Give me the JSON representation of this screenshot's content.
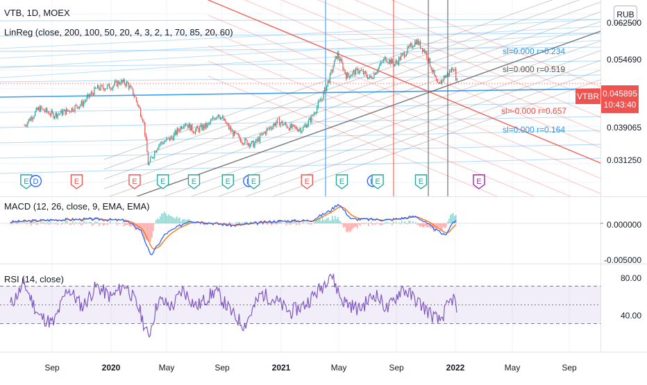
{
  "header": {
    "title": "VTB, 1D, MOEX",
    "linreg_label": "LinReg (close, 200, 100, 50, 20, 4, 3, 2, 1, 70, 85, 20, 60)"
  },
  "currency_button": "RUB",
  "ticker_tag": "VTBR",
  "current_price": "0.045895",
  "countdown": "10:43:40",
  "colors": {
    "up": "#26a69a",
    "down": "#ef5350",
    "macd": "#2962ff",
    "signal": "#ff6d00",
    "rsi": "#7e57c2",
    "blue_line": "#2196f3",
    "red_line": "#f44336",
    "grey_line": "#555555"
  },
  "chart_data": [
    {
      "type": "candlestick",
      "title": "VTB, 1D, MOEX",
      "price_axis_labels": [
        "0.062500",
        "0.054690",
        "0.045895",
        "0.039065",
        "0.031250"
      ],
      "x_tick_labels": [
        "Sep",
        "2020",
        "May",
        "Sep",
        "2021",
        "May",
        "Sep",
        "2022",
        "May",
        "Sep"
      ],
      "x_tick_bold": [
        false,
        true,
        false,
        false,
        true,
        false,
        false,
        true,
        false,
        false
      ],
      "ylim": [
        0.0275,
        0.0625
      ],
      "scale": "log",
      "close_path": [
        [
          "2019-07-01",
          0.0372
        ],
        [
          "2019-08-01",
          0.0405
        ],
        [
          "2019-09-01",
          0.0392
        ],
        [
          "2019-10-01",
          0.04
        ],
        [
          "2019-11-01",
          0.0415
        ],
        [
          "2019-12-01",
          0.0447
        ],
        [
          "2020-01-01",
          0.0452
        ],
        [
          "2020-01-20",
          0.0462
        ],
        [
          "2020-02-05",
          0.0458
        ],
        [
          "2020-02-20",
          0.043
        ],
        [
          "2020-03-10",
          0.038
        ],
        [
          "2020-03-20",
          0.0305
        ],
        [
          "2020-04-10",
          0.0338
        ],
        [
          "2020-05-10",
          0.035
        ],
        [
          "2020-06-05",
          0.0378
        ],
        [
          "2020-06-25",
          0.0362
        ],
        [
          "2020-07-25",
          0.0372
        ],
        [
          "2020-08-15",
          0.0395
        ],
        [
          "2020-09-15",
          0.0358
        ],
        [
          "2020-10-05",
          0.0345
        ],
        [
          "2020-10-30",
          0.0338
        ],
        [
          "2020-11-25",
          0.0362
        ],
        [
          "2020-12-20",
          0.038
        ],
        [
          "2021-01-15",
          0.0368
        ],
        [
          "2021-02-10",
          0.0365
        ],
        [
          "2021-03-01",
          0.0385
        ],
        [
          "2021-03-25",
          0.043
        ],
        [
          "2021-04-10",
          0.0475
        ],
        [
          "2021-04-25",
          0.0532
        ],
        [
          "2021-05-15",
          0.0475
        ],
        [
          "2021-06-10",
          0.049
        ],
        [
          "2021-07-05",
          0.047
        ],
        [
          "2021-08-05",
          0.052
        ],
        [
          "2021-08-25",
          0.0505
        ],
        [
          "2021-09-20",
          0.054
        ],
        [
          "2021-10-10",
          0.0568
        ],
        [
          "2021-10-30",
          0.0535
        ],
        [
          "2021-11-25",
          0.045
        ],
        [
          "2021-12-05",
          0.047
        ],
        [
          "2021-12-20",
          0.0485
        ],
        [
          "2021-12-28",
          0.05
        ],
        [
          "2022-01-05",
          0.0459
        ]
      ],
      "event_markers": [
        {
          "label": "E",
          "date": "2019-07-05",
          "kind": "earnings-green"
        },
        {
          "label": "D",
          "date": "2019-07-25",
          "kind": "dividend-blue"
        },
        {
          "label": "E",
          "date": "2019-10-20",
          "kind": "earnings-red"
        },
        {
          "label": "E",
          "date": "2020-02-20",
          "kind": "earnings-red"
        },
        {
          "label": "E",
          "date": "2020-04-20",
          "kind": "earnings-green"
        },
        {
          "label": "E",
          "date": "2020-06-25",
          "kind": "earnings-green"
        },
        {
          "label": "E",
          "date": "2020-09-05",
          "kind": "earnings-green"
        },
        {
          "label": "D",
          "date": "2020-10-20",
          "kind": "dividend-blue"
        },
        {
          "label": "E",
          "date": "2020-10-30",
          "kind": "earnings-green"
        },
        {
          "label": "E",
          "date": "2021-02-20",
          "kind": "earnings-red"
        },
        {
          "label": "E",
          "date": "2021-05-05",
          "kind": "earnings-green"
        },
        {
          "label": "D",
          "date": "2021-07-10",
          "kind": "dividend-blue"
        },
        {
          "label": "E",
          "date": "2021-07-20",
          "kind": "earnings-green"
        },
        {
          "label": "E",
          "date": "2021-10-20",
          "kind": "earnings-green"
        },
        {
          "label": "E",
          "date": "2022-02-20",
          "kind": "earnings-purple"
        }
      ],
      "regression_annotations": [
        {
          "text": "sl=0.000 r=0.234",
          "color": "#2196f3"
        },
        {
          "text": "sl=0.000 r=0.519",
          "color": "#555555"
        },
        {
          "text": "sl=-0.000 r=0.657",
          "color": "#f44336"
        },
        {
          "text": "sl=0.000 r=0.164",
          "color": "#2196f3"
        }
      ]
    },
    {
      "type": "line",
      "title": "MACD (12, 26, close, 9, EMA, EMA)",
      "axis_labels": [
        "0.000000",
        "-0.005000"
      ],
      "ylim": [
        -0.0058,
        0.0045
      ],
      "macd_path": [
        [
          "2019-06-01",
          0.0002
        ],
        [
          "2019-09-01",
          0.0005
        ],
        [
          "2019-12-01",
          0.0006
        ],
        [
          "2020-02-01",
          0.0004
        ],
        [
          "2020-03-05",
          -0.001
        ],
        [
          "2020-03-25",
          -0.0046
        ],
        [
          "2020-04-25",
          -0.0015
        ],
        [
          "2020-06-15",
          0.0004
        ],
        [
          "2020-09-15",
          -0.0003
        ],
        [
          "2020-12-15",
          0.0003
        ],
        [
          "2021-03-01",
          0.0004
        ],
        [
          "2021-04-10",
          0.0018
        ],
        [
          "2021-04-28",
          0.0028
        ],
        [
          "2021-05-25",
          0.0006
        ],
        [
          "2021-08-15",
          0.0005
        ],
        [
          "2021-10-10",
          0.001
        ],
        [
          "2021-11-25",
          -0.0011
        ],
        [
          "2021-12-10",
          -0.0017
        ],
        [
          "2021-12-28",
          0.0003
        ],
        [
          "2022-01-05",
          0.0002
        ]
      ]
    },
    {
      "type": "line",
      "title": "RSI (14, close)",
      "axis_labels": [
        "80.00",
        "40.00"
      ],
      "ylim": [
        10,
        90
      ],
      "bands": [
        70,
        50,
        30
      ],
      "rsi_path": [
        [
          "2019-06-01",
          50
        ],
        [
          "2019-07-01",
          72
        ],
        [
          "2019-08-01",
          38
        ],
        [
          "2019-09-01",
          30
        ],
        [
          "2019-10-01",
          68
        ],
        [
          "2019-11-01",
          48
        ],
        [
          "2019-12-01",
          70
        ],
        [
          "2020-01-01",
          58
        ],
        [
          "2020-02-01",
          72
        ],
        [
          "2020-03-01",
          45
        ],
        [
          "2020-03-20",
          15
        ],
        [
          "2020-04-10",
          55
        ],
        [
          "2020-05-10",
          48
        ],
        [
          "2020-06-01",
          66
        ],
        [
          "2020-07-01",
          48
        ],
        [
          "2020-08-10",
          65
        ],
        [
          "2020-09-15",
          40
        ],
        [
          "2020-10-10",
          28
        ],
        [
          "2020-11-15",
          62
        ],
        [
          "2020-12-15",
          55
        ],
        [
          "2021-01-15",
          42
        ],
        [
          "2021-02-15",
          50
        ],
        [
          "2021-03-25",
          70
        ],
        [
          "2021-04-10",
          85
        ],
        [
          "2021-05-05",
          55
        ],
        [
          "2021-06-10",
          45
        ],
        [
          "2021-07-15",
          62
        ],
        [
          "2021-08-10",
          45
        ],
        [
          "2021-09-10",
          68
        ],
        [
          "2021-10-10",
          55
        ],
        [
          "2021-11-10",
          40
        ],
        [
          "2021-11-28",
          32
        ],
        [
          "2021-12-15",
          48
        ],
        [
          "2021-12-28",
          58
        ],
        [
          "2022-01-05",
          42
        ]
      ]
    }
  ]
}
